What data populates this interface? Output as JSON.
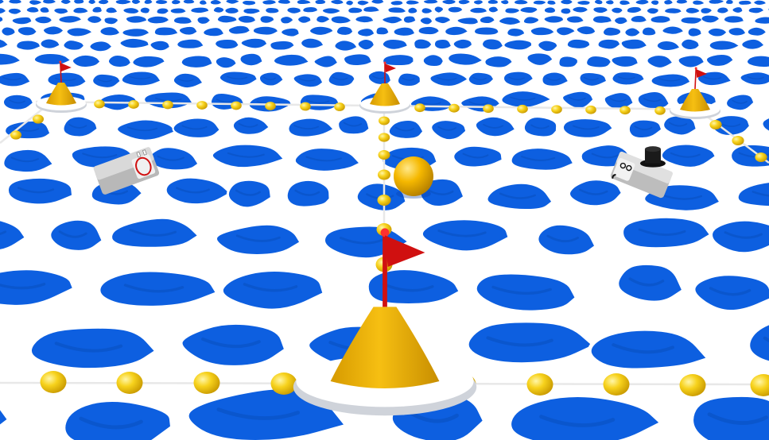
{
  "scene": {
    "water_color": "#1565e6",
    "water_cell_color": "#0d5fe0",
    "water_shadow_color": "#0a4fbd",
    "crack_color": "#ffffff",
    "rope_color": "#e8e8e8",
    "float_color": "#f4c20d",
    "float_highlight": "#fff27a",
    "buoy_cone_color": "#f0b400",
    "buoy_base_color": "#ffffff",
    "flag_color": "#d01010",
    "flag_pole_color": "#d01010"
  },
  "ball": {
    "color": "#f3b400",
    "highlight": "#ffe27a"
  },
  "boats": [
    {
      "name": "boat-left",
      "hull_color": "#d9d9d9",
      "marking_color": "#d01010",
      "has_hat": false
    },
    {
      "name": "boat-right",
      "hull_color": "#e0e0e0",
      "marking_color": "#111111",
      "has_hat": true
    }
  ],
  "buoys": [
    {
      "name": "buoy-back-left",
      "has_flag": true
    },
    {
      "name": "buoy-back-center",
      "has_flag": true
    },
    {
      "name": "buoy-back-right",
      "has_flag": true
    },
    {
      "name": "buoy-front-center",
      "has_flag": true
    }
  ]
}
